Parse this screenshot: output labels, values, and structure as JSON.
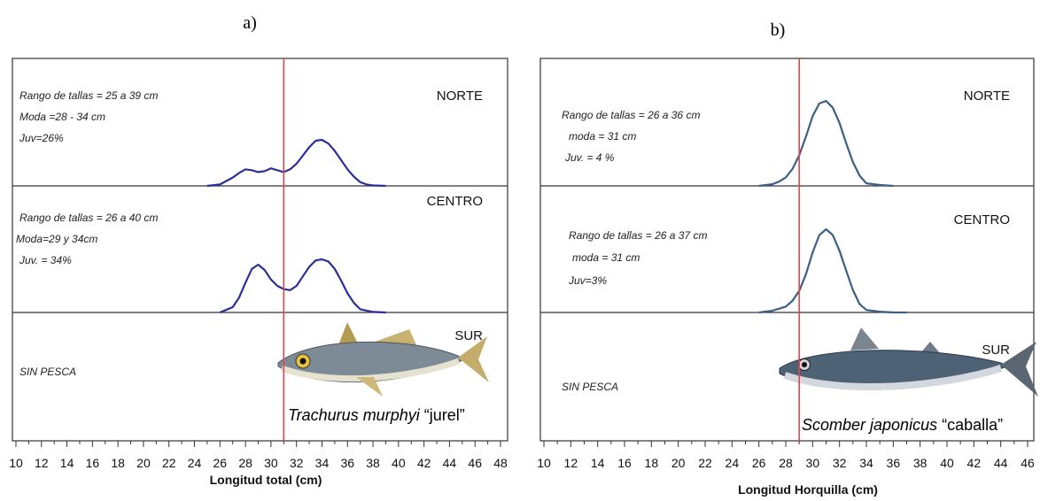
{
  "chart_data": [
    {
      "type": "line",
      "panel_label": "a)",
      "xlabel": "Longitud total (cm)",
      "xlim": [
        10,
        48
      ],
      "x_ticks": [
        "10",
        "12",
        "14",
        "16",
        "18",
        "20",
        "22",
        "24",
        "26",
        "28",
        "30",
        "32",
        "34",
        "36",
        "38",
        "40",
        "42",
        "44",
        "46",
        "48"
      ],
      "reference_line_x": 31,
      "line_color": "#2b2f9a",
      "reference_color": "#e8434a",
      "species_scientific": "Trachurus murphyi",
      "species_common": "“jurel”",
      "regions": [
        {
          "name": "NORTE",
          "info": [
            "Rango de tallas =  25 a 39 cm",
            "Moda =28 - 34 cm",
            "Juv=26%"
          ],
          "x": [
            25,
            26,
            27,
            27.5,
            28,
            28.5,
            29,
            29.5,
            30,
            30.5,
            31,
            31.5,
            32,
            32.5,
            33,
            33.5,
            34,
            34.5,
            35,
            35.5,
            36,
            36.5,
            37,
            37.5,
            38,
            39
          ],
          "y": [
            0,
            0.03,
            0.18,
            0.28,
            0.36,
            0.34,
            0.3,
            0.32,
            0.38,
            0.34,
            0.3,
            0.36,
            0.48,
            0.66,
            0.84,
            0.98,
            1.0,
            0.92,
            0.76,
            0.56,
            0.36,
            0.2,
            0.08,
            0.03,
            0.01,
            0
          ]
        },
        {
          "name": "CENTRO",
          "info": [
            "Rango de tallas  =  26 a 40 cm",
            "Moda=29  y 34cm",
            "Juv. = 34%"
          ],
          "x": [
            26,
            27,
            27.5,
            28,
            28.5,
            29,
            29.5,
            30,
            30.5,
            31,
            31.5,
            32,
            32.5,
            33,
            33.5,
            34,
            34.5,
            35,
            35.5,
            36,
            36.5,
            37,
            38,
            39
          ],
          "y": [
            0,
            0.1,
            0.28,
            0.56,
            0.82,
            0.9,
            0.8,
            0.62,
            0.5,
            0.44,
            0.42,
            0.5,
            0.68,
            0.86,
            0.98,
            1.0,
            0.96,
            0.82,
            0.6,
            0.36,
            0.18,
            0.06,
            0.01,
            0
          ]
        },
        {
          "name": "SUR",
          "info": [
            "SIN PESCA"
          ],
          "x": [],
          "y": []
        }
      ]
    },
    {
      "type": "line",
      "panel_label": "b)",
      "xlabel": "Longitud Horquilla (cm)",
      "xlim": [
        10,
        46
      ],
      "x_ticks": [
        "10",
        "12",
        "14",
        "16",
        "18",
        "20",
        "22",
        "24",
        "26",
        "28",
        "30",
        "32",
        "34",
        "36",
        "38",
        "40",
        "42",
        "44",
        "46"
      ],
      "reference_line_x": 29,
      "line_color": "#3b5f86",
      "reference_color": "#e8434a",
      "species_scientific": "Scomber japonicus",
      "species_common": "“caballa”",
      "regions": [
        {
          "name": "NORTE",
          "info": [
            "Rango de tallas  = 26 a 36 cm",
            "moda = 31 cm",
            "Juv. = 4 %"
          ],
          "x": [
            26,
            27,
            27.5,
            28,
            28.5,
            29,
            29.5,
            30,
            30.5,
            31,
            31.5,
            32,
            32.5,
            33,
            33.5,
            34,
            35,
            36
          ],
          "y": [
            0,
            0.02,
            0.05,
            0.1,
            0.2,
            0.36,
            0.58,
            0.82,
            0.97,
            1.0,
            0.92,
            0.74,
            0.5,
            0.28,
            0.12,
            0.03,
            0.01,
            0
          ]
        },
        {
          "name": "CENTRO",
          "info": [
            "Rango de tallas = 26 a 37 cm",
            "moda =  31 cm",
            "Juv=3%"
          ],
          "x": [
            26,
            27,
            28,
            28.5,
            29,
            29.5,
            30,
            30.5,
            31,
            31.5,
            32,
            32.5,
            33,
            33.5,
            34,
            35,
            36,
            37
          ],
          "y": [
            0,
            0.02,
            0.07,
            0.14,
            0.26,
            0.46,
            0.72,
            0.93,
            1.0,
            0.93,
            0.74,
            0.5,
            0.27,
            0.1,
            0.03,
            0.01,
            0,
            0
          ]
        },
        {
          "name": "SUR",
          "info": [
            "SIN PESCA"
          ],
          "x": [],
          "y": []
        }
      ]
    }
  ]
}
